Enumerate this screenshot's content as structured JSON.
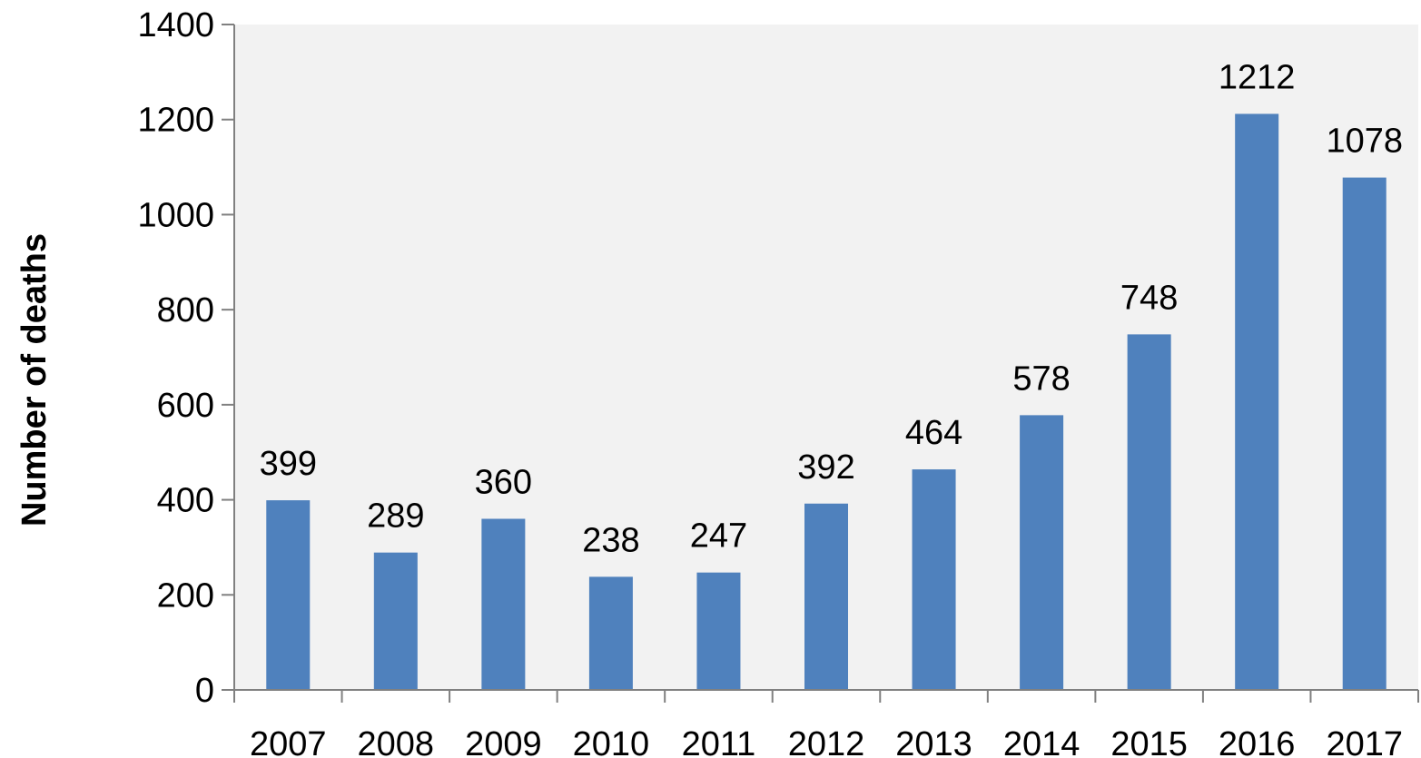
{
  "chart_data": {
    "type": "bar",
    "title": "",
    "xlabel": "",
    "ylabel": "Number of deaths",
    "categories": [
      "2007",
      "2008",
      "2009",
      "2010",
      "2011",
      "2012",
      "2013",
      "2014",
      "2015",
      "2016",
      "2017"
    ],
    "values": [
      399,
      289,
      360,
      238,
      247,
      392,
      464,
      578,
      748,
      1212,
      1078
    ],
    "ylim": [
      0,
      1400
    ],
    "yticks": [
      0,
      200,
      400,
      600,
      800,
      1000,
      1200,
      1400
    ],
    "grid": false,
    "legend": "none",
    "data_labels": true,
    "colors": {
      "bar": "#4f81bd",
      "plot_background": "#f2f2f2",
      "axis": "#808080"
    }
  }
}
